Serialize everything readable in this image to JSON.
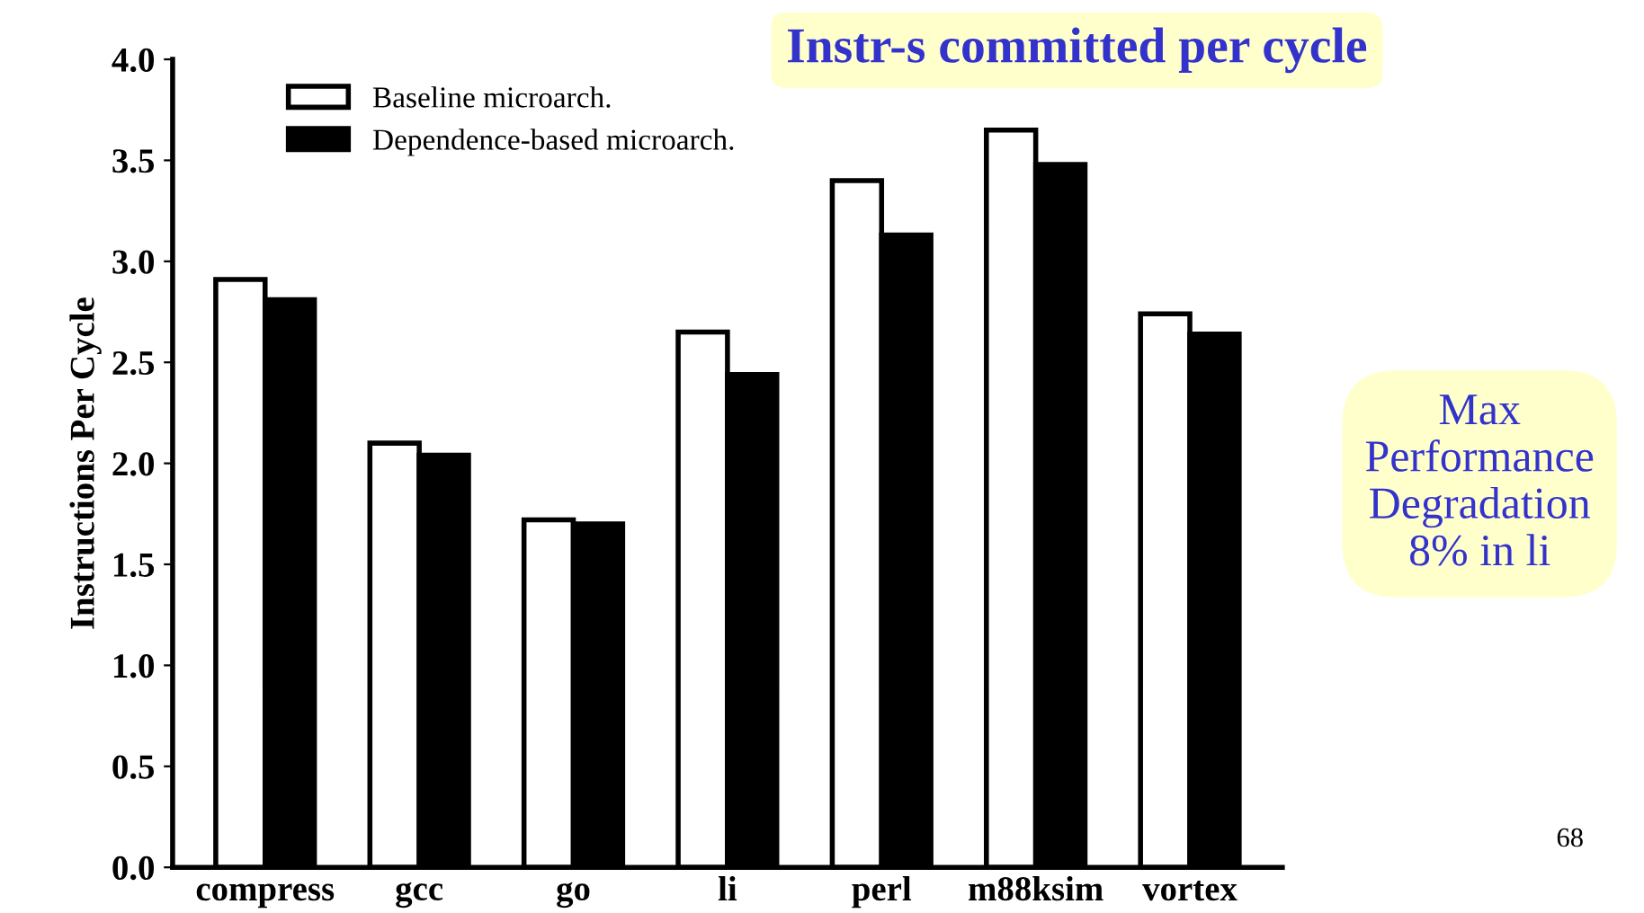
{
  "chart_data": {
    "type": "bar",
    "title": "Instr-s committed per cycle",
    "ylabel": "Instructions Per Cycle",
    "categories": [
      "compress",
      "gcc",
      "go",
      "li",
      "perl",
      "m88ksim",
      "vortex"
    ],
    "series": [
      {
        "name": "Baseline microarch.",
        "color": "#ffffff",
        "values": [
          2.91,
          2.1,
          1.72,
          2.65,
          3.4,
          3.65,
          2.74
        ]
      },
      {
        "name": "Dependence-based microarch.",
        "color": "#000000",
        "values": [
          2.81,
          2.04,
          1.7,
          2.44,
          3.13,
          3.48,
          2.64
        ]
      }
    ],
    "ylim": [
      0,
      4.0
    ],
    "yticks": [
      {
        "value": 0,
        "label": "0.0"
      },
      0.5,
      {
        "value": 1,
        "label": "1.0"
      },
      1.5,
      {
        "value": 2,
        "label": "2.0"
      },
      2.5,
      {
        "value": 3,
        "label": "3.0"
      },
      3.5,
      {
        "value": 4,
        "label": "4.0"
      }
    ],
    "grid": false,
    "legend": "top left",
    "annotations": [
      "Max\nPerformance\nDegradation\n8% in li",
      "68"
    ]
  }
}
